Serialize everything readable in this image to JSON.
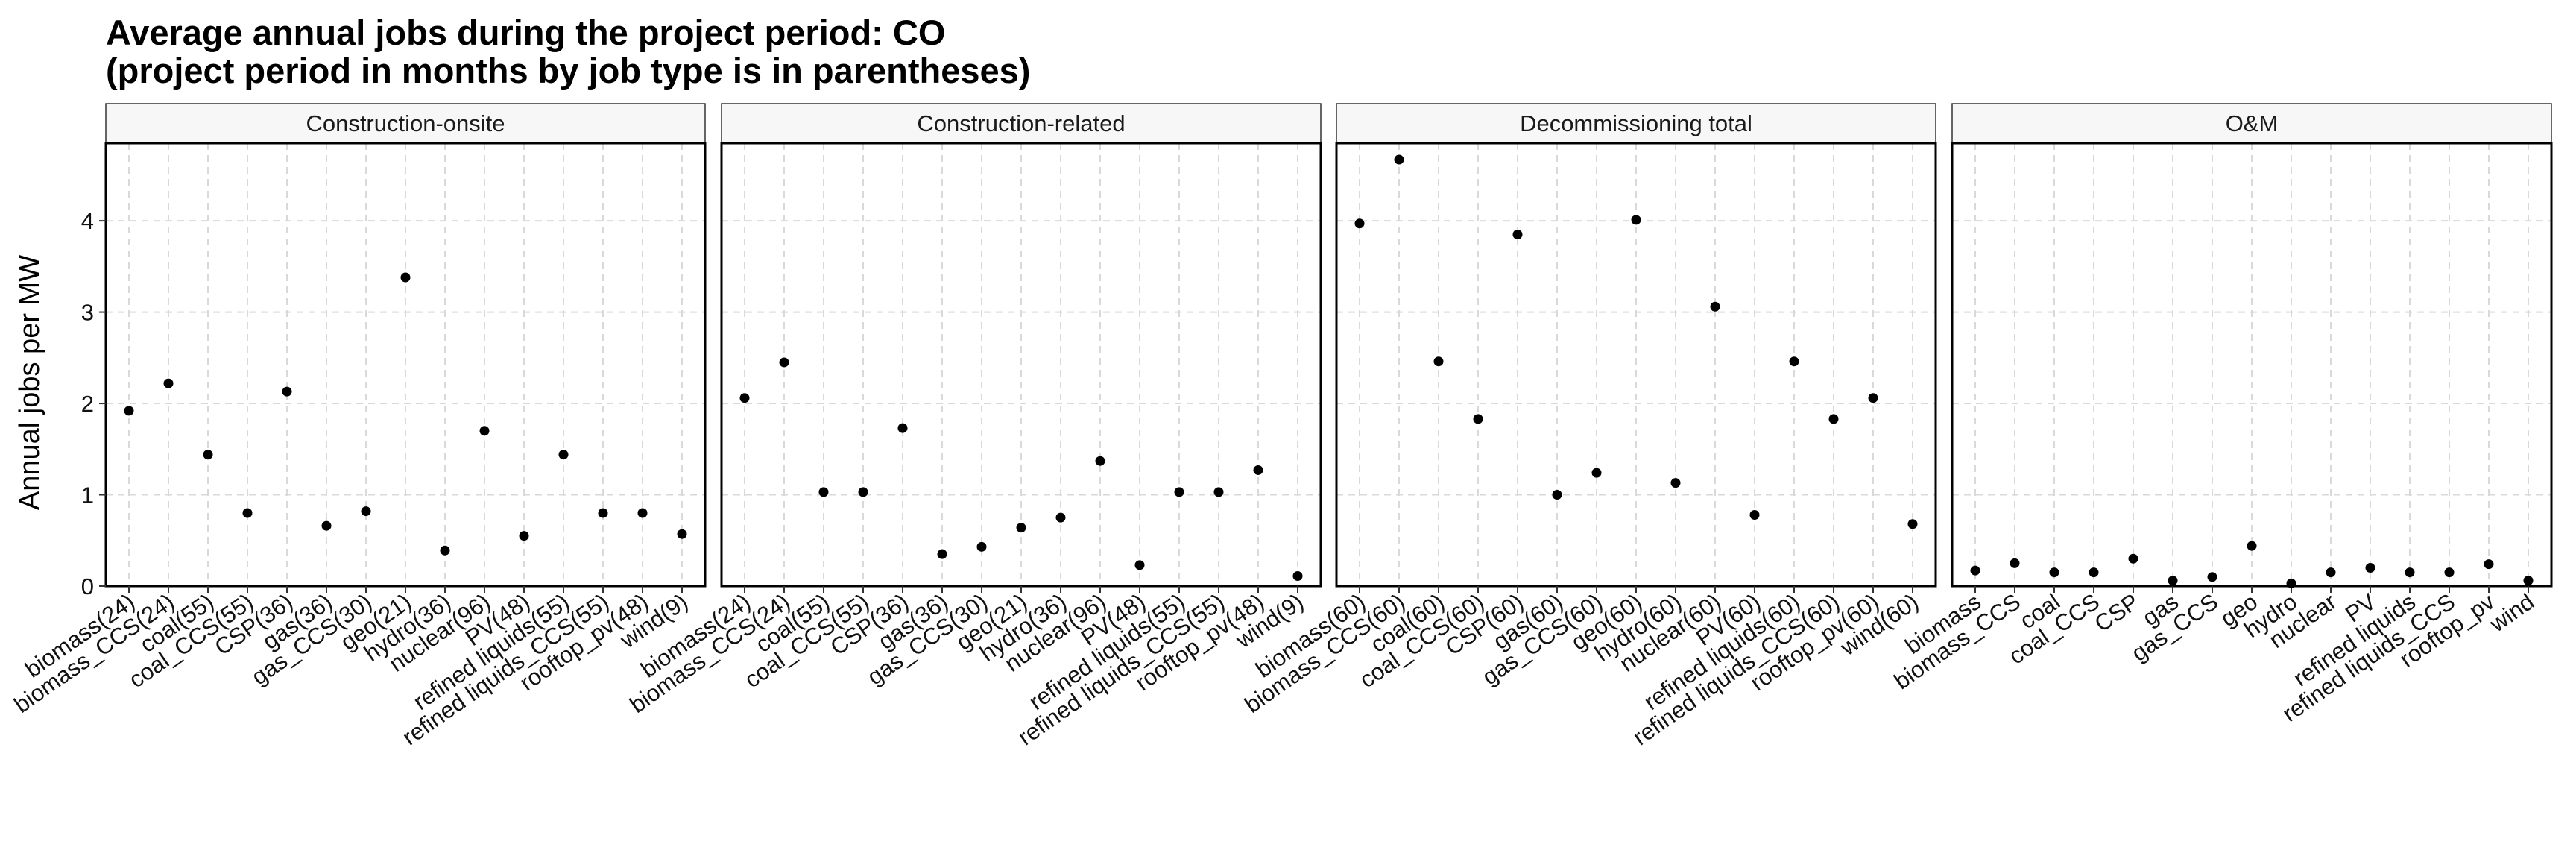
{
  "chart_data": {
    "type": "scatter",
    "title": "Average annual jobs during the project period: CO",
    "subtitle": "(project period in months by job type is in parentheses)",
    "ylabel": "Annual jobs per MW",
    "xlabel": "",
    "ylim": [
      0,
      4.85
    ],
    "yticks": [
      "0",
      "1",
      "2",
      "3",
      "4"
    ],
    "grid": true,
    "panels": [
      {
        "name": "Construction-onsite",
        "categories": [
          "biomass(24)",
          "biomass_CCS(24)",
          "coal(55)",
          "coal_CCS(55)",
          "CSP(36)",
          "gas(36)",
          "gas_CCS(30)",
          "geo(21)",
          "hydro(36)",
          "nuclear(96)",
          "PV(48)",
          "refined liquids(55)",
          "refined liquids_CCS(55)",
          "rooftop_pv(48)",
          "wind(9)"
        ],
        "values": [
          1.92,
          2.22,
          1.44,
          0.8,
          2.13,
          0.66,
          0.82,
          3.38,
          0.39,
          1.7,
          0.55,
          1.44,
          0.8,
          0.8,
          0.57
        ]
      },
      {
        "name": "Construction-related",
        "categories": [
          "biomass(24)",
          "biomass_CCS(24)",
          "coal(55)",
          "coal_CCS(55)",
          "CSP(36)",
          "gas(36)",
          "gas_CCS(30)",
          "geo(21)",
          "hydro(36)",
          "nuclear(96)",
          "PV(48)",
          "refined liquids(55)",
          "refined liquids_CCS(55)",
          "rooftop_pv(48)",
          "wind(9)"
        ],
        "values": [
          2.06,
          2.45,
          1.03,
          1.03,
          1.73,
          0.35,
          0.43,
          0.64,
          0.75,
          1.37,
          0.23,
          1.03,
          1.03,
          1.27,
          0.11
        ]
      },
      {
        "name": "Decommissioning total",
        "categories": [
          "biomass(60)",
          "biomass_CCS(60)",
          "coal(60)",
          "coal_CCS(60)",
          "CSP(60)",
          "gas(60)",
          "gas_CCS(60)",
          "geo(60)",
          "hydro(60)",
          "nuclear(60)",
          "PV(60)",
          "refined liquids(60)",
          "refined liquids_CCS(60)",
          "rooftop_pv(60)",
          "wind(60)"
        ],
        "values": [
          3.97,
          4.67,
          2.46,
          1.83,
          3.85,
          1.0,
          1.24,
          4.01,
          1.13,
          3.06,
          0.78,
          2.46,
          1.83,
          2.06,
          0.68
        ]
      },
      {
        "name": "O&M",
        "categories": [
          "biomass",
          "biomass_CCS",
          "coal",
          "coal_CCS",
          "CSP",
          "gas",
          "gas_CCS",
          "geo",
          "hydro",
          "nuclear",
          "PV",
          "refined liquids",
          "refined liquids_CCS",
          "rooftop_pv",
          "wind"
        ],
        "values": [
          0.17,
          0.25,
          0.15,
          0.15,
          0.3,
          0.06,
          0.1,
          0.44,
          0.03,
          0.15,
          0.2,
          0.15,
          0.15,
          0.24,
          0.06
        ]
      }
    ]
  }
}
